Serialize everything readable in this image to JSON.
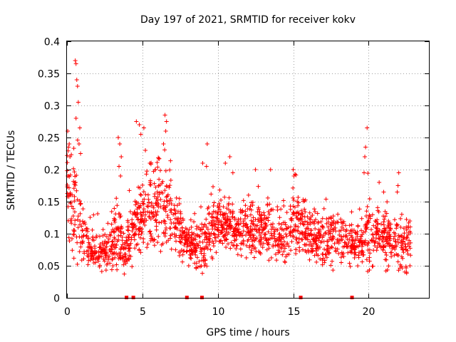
{
  "chart_data": {
    "type": "scatter",
    "title": "Day 197 of 2021, SRMTID for receiver kokv",
    "xlabel": "GPS time / hours",
    "ylabel": "SRMTID / TECUs",
    "xlim": [
      0,
      24
    ],
    "ylim": [
      0,
      0.4
    ],
    "x_ticks": [
      0,
      5,
      10,
      15,
      20
    ],
    "x_tick_labels": [
      "0",
      "5",
      "10",
      "15",
      "20"
    ],
    "y_ticks": [
      0,
      0.05,
      0.1,
      0.15,
      0.2,
      0.25,
      0.3,
      0.35,
      0.4
    ],
    "y_tick_labels": [
      "0",
      "0.05",
      "0.1",
      "0.15",
      "0.2",
      "0.25",
      "0.3",
      "0.35",
      "0.4"
    ],
    "grid": true,
    "marker": "+",
    "series_color": "#ff0000",
    "data_gaps_at_zero": [
      3.95,
      4.4,
      7.95,
      8.95,
      15.5,
      18.9
    ],
    "activity_profile": [
      [
        0.0,
        0.2,
        0.04
      ],
      [
        0.15,
        0.13,
        0.05
      ],
      [
        0.6,
        0.15,
        0.07
      ],
      [
        1.0,
        0.1,
        0.04
      ],
      [
        1.5,
        0.07,
        0.02
      ],
      [
        2.5,
        0.07,
        0.02
      ],
      [
        3.3,
        0.1,
        0.04
      ],
      [
        3.8,
        0.07,
        0.02
      ],
      [
        4.5,
        0.11,
        0.04
      ],
      [
        5.0,
        0.13,
        0.04
      ],
      [
        6.0,
        0.15,
        0.05
      ],
      [
        6.8,
        0.14,
        0.05
      ],
      [
        7.5,
        0.1,
        0.03
      ],
      [
        8.2,
        0.08,
        0.02
      ],
      [
        9.0,
        0.08,
        0.03
      ],
      [
        9.6,
        0.11,
        0.04
      ],
      [
        10.5,
        0.11,
        0.03
      ],
      [
        11.5,
        0.1,
        0.03
      ],
      [
        12.5,
        0.11,
        0.03
      ],
      [
        13.5,
        0.1,
        0.03
      ],
      [
        14.5,
        0.09,
        0.03
      ],
      [
        15.2,
        0.12,
        0.04
      ],
      [
        16.0,
        0.1,
        0.03
      ],
      [
        17.0,
        0.09,
        0.03
      ],
      [
        18.0,
        0.09,
        0.03
      ],
      [
        19.0,
        0.08,
        0.02
      ],
      [
        19.7,
        0.1,
        0.04
      ],
      [
        20.5,
        0.1,
        0.03
      ],
      [
        21.5,
        0.09,
        0.03
      ],
      [
        22.8,
        0.08,
        0.03
      ]
    ],
    "spikes": [
      [
        0.05,
        0.26
      ],
      [
        0.1,
        0.235
      ],
      [
        0.15,
        0.24
      ],
      [
        0.2,
        0.22
      ],
      [
        0.55,
        0.37
      ],
      [
        0.6,
        0.365
      ],
      [
        0.65,
        0.34
      ],
      [
        0.7,
        0.33
      ],
      [
        0.75,
        0.305
      ],
      [
        0.6,
        0.28
      ],
      [
        0.85,
        0.265
      ],
      [
        0.8,
        0.24
      ],
      [
        0.9,
        0.225
      ],
      [
        3.4,
        0.25
      ],
      [
        3.5,
        0.24
      ],
      [
        3.6,
        0.22
      ],
      [
        3.45,
        0.205
      ],
      [
        3.55,
        0.19
      ],
      [
        4.6,
        0.275
      ],
      [
        4.8,
        0.27
      ],
      [
        4.9,
        0.255
      ],
      [
        5.1,
        0.265
      ],
      [
        5.2,
        0.23
      ],
      [
        5.5,
        0.21
      ],
      [
        6.5,
        0.285
      ],
      [
        6.6,
        0.275
      ],
      [
        6.55,
        0.26
      ],
      [
        6.4,
        0.24
      ],
      [
        9.0,
        0.21
      ],
      [
        9.3,
        0.24
      ],
      [
        9.25,
        0.205
      ],
      [
        10.5,
        0.21
      ],
      [
        10.8,
        0.22
      ],
      [
        11.0,
        0.195
      ],
      [
        12.5,
        0.2
      ],
      [
        13.5,
        0.2
      ],
      [
        15.0,
        0.2
      ],
      [
        15.05,
        0.19
      ],
      [
        19.9,
        0.265
      ],
      [
        19.8,
        0.235
      ],
      [
        19.75,
        0.22
      ],
      [
        19.7,
        0.195
      ],
      [
        20.7,
        0.18
      ],
      [
        21.0,
        0.165
      ],
      [
        22.0,
        0.195
      ],
      [
        21.95,
        0.175
      ],
      [
        21.9,
        0.165
      ],
      [
        22.6,
        0.11
      ]
    ]
  }
}
